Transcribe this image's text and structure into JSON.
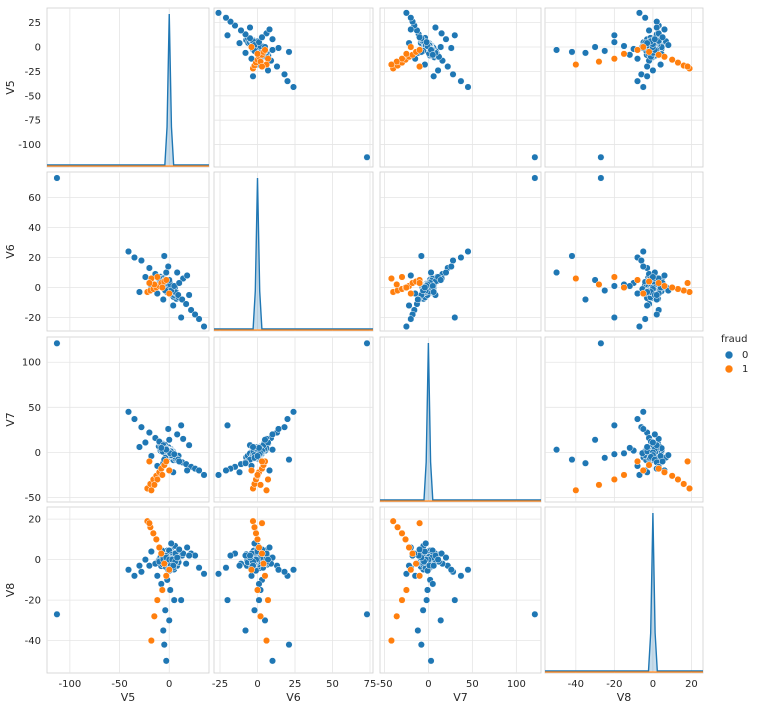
{
  "chart_data": {
    "type": "scatter",
    "kind": "pairplot",
    "variables": [
      "V5",
      "V6",
      "V7",
      "V8"
    ],
    "ranges": {
      "V5": [
        -123,
        40
      ],
      "V6": [
        -29,
        77
      ],
      "V7": [
        -55,
        128
      ],
      "V8": [
        -56,
        26
      ]
    },
    "ticks": {
      "V5": [
        -100,
        -75,
        -50,
        -25,
        0,
        25
      ],
      "V6": [
        -20,
        0,
        20,
        40,
        60
      ],
      "V7": [
        -50,
        0,
        50,
        100
      ],
      "V8": [
        -40,
        -20,
        0,
        20
      ]
    },
    "x_ticks": {
      "V5": [
        -100,
        -50,
        0
      ],
      "V6": [
        -25,
        0,
        25,
        50,
        75
      ],
      "V7": [
        -50,
        0,
        50,
        100
      ],
      "V8": [
        -40,
        -20,
        0,
        20
      ]
    },
    "grid": true,
    "legend": {
      "title": "fraud",
      "position": "right",
      "entries": [
        {
          "label": "0",
          "color": "#1f77b4"
        },
        {
          "label": "1",
          "color": "#ff7f0e"
        }
      ]
    },
    "outlier": {
      "V5": -113,
      "V6": 73,
      "V7": 121,
      "V8": -27
    },
    "class0_samples": [
      {
        "V5": -41,
        "V6": 24,
        "V7": 45,
        "V8": -5
      },
      {
        "V5": -35,
        "V6": 20,
        "V7": 37,
        "V8": -8
      },
      {
        "V5": -28,
        "V6": 18,
        "V7": 28,
        "V8": -6
      },
      {
        "V5": -20,
        "V6": 13,
        "V7": 22,
        "V8": -3
      },
      {
        "V5": -14,
        "V6": 9,
        "V7": 16,
        "V8": -2
      },
      {
        "V5": -10,
        "V6": 6,
        "V7": 12,
        "V8": -1
      },
      {
        "V5": -6,
        "V6": 4,
        "V7": 8,
        "V8": 0
      },
      {
        "V5": -3,
        "V6": 2,
        "V7": 4,
        "V8": 1
      },
      {
        "V5": 0,
        "V6": 0,
        "V7": 0,
        "V8": 0
      },
      {
        "V5": 3,
        "V6": -1,
        "V7": -3,
        "V8": 0
      },
      {
        "V5": 6,
        "V6": -3,
        "V7": -5,
        "V8": -1
      },
      {
        "V5": 9,
        "V6": -5,
        "V7": -8,
        "V8": 1
      },
      {
        "V5": 13,
        "V6": -8,
        "V7": -11,
        "V8": 2
      },
      {
        "V5": 17,
        "V6": -11,
        "V7": -13,
        "V8": -2
      },
      {
        "V5": 22,
        "V6": -15,
        "V7": -16,
        "V8": 3
      },
      {
        "V5": 26,
        "V6": -18,
        "V7": -18,
        "V8": 2
      },
      {
        "V5": 30,
        "V6": -21,
        "V7": -20,
        "V8": -4
      },
      {
        "V5": 35,
        "V6": -26,
        "V7": -25,
        "V8": -7
      },
      {
        "V5": 2,
        "V6": -2,
        "V7": -3,
        "V8": 8
      },
      {
        "V5": -2,
        "V6": 3,
        "V7": 2,
        "V8": -10
      },
      {
        "V5": 1,
        "V6": 2,
        "V7": -1,
        "V8": -15
      },
      {
        "V5": 5,
        "V6": 1,
        "V7": -2,
        "V8": -20
      },
      {
        "V5": -4,
        "V6": -2,
        "V7": -6,
        "V8": -25
      },
      {
        "V5": -6,
        "V6": -8,
        "V7": -12,
        "V8": -35
      },
      {
        "V5": -3,
        "V6": 10,
        "V7": 3,
        "V8": -50
      },
      {
        "V5": 14,
        "V6": 6,
        "V7": 15,
        "V8": 3
      },
      {
        "V5": 8,
        "V6": 10,
        "V7": 20,
        "V8": 1
      },
      {
        "V5": -12,
        "V6": -4,
        "V7": -15,
        "V8": -8
      },
      {
        "V5": 20,
        "V6": -5,
        "V7": 8,
        "V8": 2
      },
      {
        "V5": -18,
        "V6": 0,
        "V7": -4,
        "V8": 4
      },
      {
        "V5": -1,
        "V6": 14,
        "V7": 26,
        "V8": -5
      },
      {
        "V5": 4,
        "V6": -12,
        "V7": -22,
        "V8": -3
      },
      {
        "V5": 10,
        "V6": 3,
        "V7": -10,
        "V8": 5
      },
      {
        "V5": -8,
        "V6": 1,
        "V7": 5,
        "V8": -12
      },
      {
        "V5": -24,
        "V6": 7,
        "V7": 11,
        "V8": 0
      },
      {
        "V5": 12,
        "V6": -20,
        "V7": 30,
        "V8": -20
      },
      {
        "V5": -5,
        "V6": 21,
        "V7": -8,
        "V8": -42
      },
      {
        "V5": 18,
        "V6": 8,
        "V7": -20,
        "V8": 6
      },
      {
        "V5": -30,
        "V6": -3,
        "V7": 6,
        "V8": -3
      },
      {
        "V5": 0,
        "V6": 5,
        "V7": 14,
        "V8": -30
      }
    ],
    "class1_samples": [
      {
        "V5": -22,
        "V6": -3,
        "V7": -40,
        "V8": 19
      },
      {
        "V5": -19,
        "V6": -2,
        "V7": -35,
        "V8": 16
      },
      {
        "V5": -16,
        "V6": -1,
        "V7": -30,
        "V8": 13
      },
      {
        "V5": -13,
        "V6": 0,
        "V7": -26,
        "V8": 10
      },
      {
        "V5": -10,
        "V6": 1,
        "V7": -22,
        "V8": 6
      },
      {
        "V5": -8,
        "V6": 3,
        "V7": -18,
        "V8": 3
      },
      {
        "V5": -5,
        "V6": 4,
        "V7": -14,
        "V8": -2
      },
      {
        "V5": -3,
        "V6": 5,
        "V7": -10,
        "V8": -8
      },
      {
        "V5": -12,
        "V6": 7,
        "V7": -30,
        "V8": -20
      },
      {
        "V5": -15,
        "V6": 2,
        "V7": -36,
        "V8": -28
      },
      {
        "V5": -18,
        "V6": 6,
        "V7": -42,
        "V8": -40
      },
      {
        "V5": 0,
        "V6": -4,
        "V7": -20,
        "V8": -5
      },
      {
        "V5": -20,
        "V6": 3,
        "V7": -10,
        "V8": 18
      },
      {
        "V5": -7,
        "V6": 0,
        "V7": -25,
        "V8": -15
      }
    ]
  }
}
